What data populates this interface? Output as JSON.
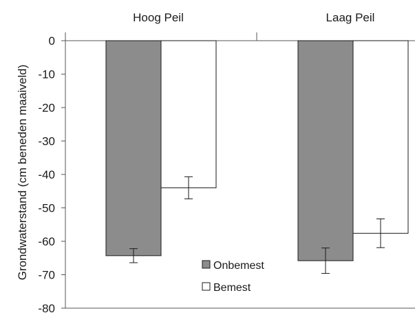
{
  "chart_data": {
    "type": "bar",
    "categories": [
      "Hoog Peil",
      "Laag Peil"
    ],
    "series": [
      {
        "name": "Onbemest",
        "values": [
          -64.3,
          -65.8
        ],
        "errors": [
          2.1,
          3.8
        ],
        "color": "#8c8c8c"
      },
      {
        "name": "Bemest",
        "values": [
          -44.0,
          -57.6
        ],
        "errors": [
          3.3,
          4.3
        ],
        "color": "#ffffff"
      }
    ],
    "title": "",
    "xlabel": "",
    "ylabel": "Grondwaterstand (cm beneden maaiveld)",
    "ylim": [
      -80,
      0
    ],
    "yticks": [
      0,
      -10,
      -20,
      -30,
      -40,
      -50,
      -60,
      -70,
      -80
    ],
    "category_axis_position": "top",
    "grid": false,
    "legend_position": "bottom-center",
    "colors": {
      "axis": "#555555",
      "bar_stroke": "#1a1a1a",
      "error_bar": "#1a1a1a"
    }
  }
}
